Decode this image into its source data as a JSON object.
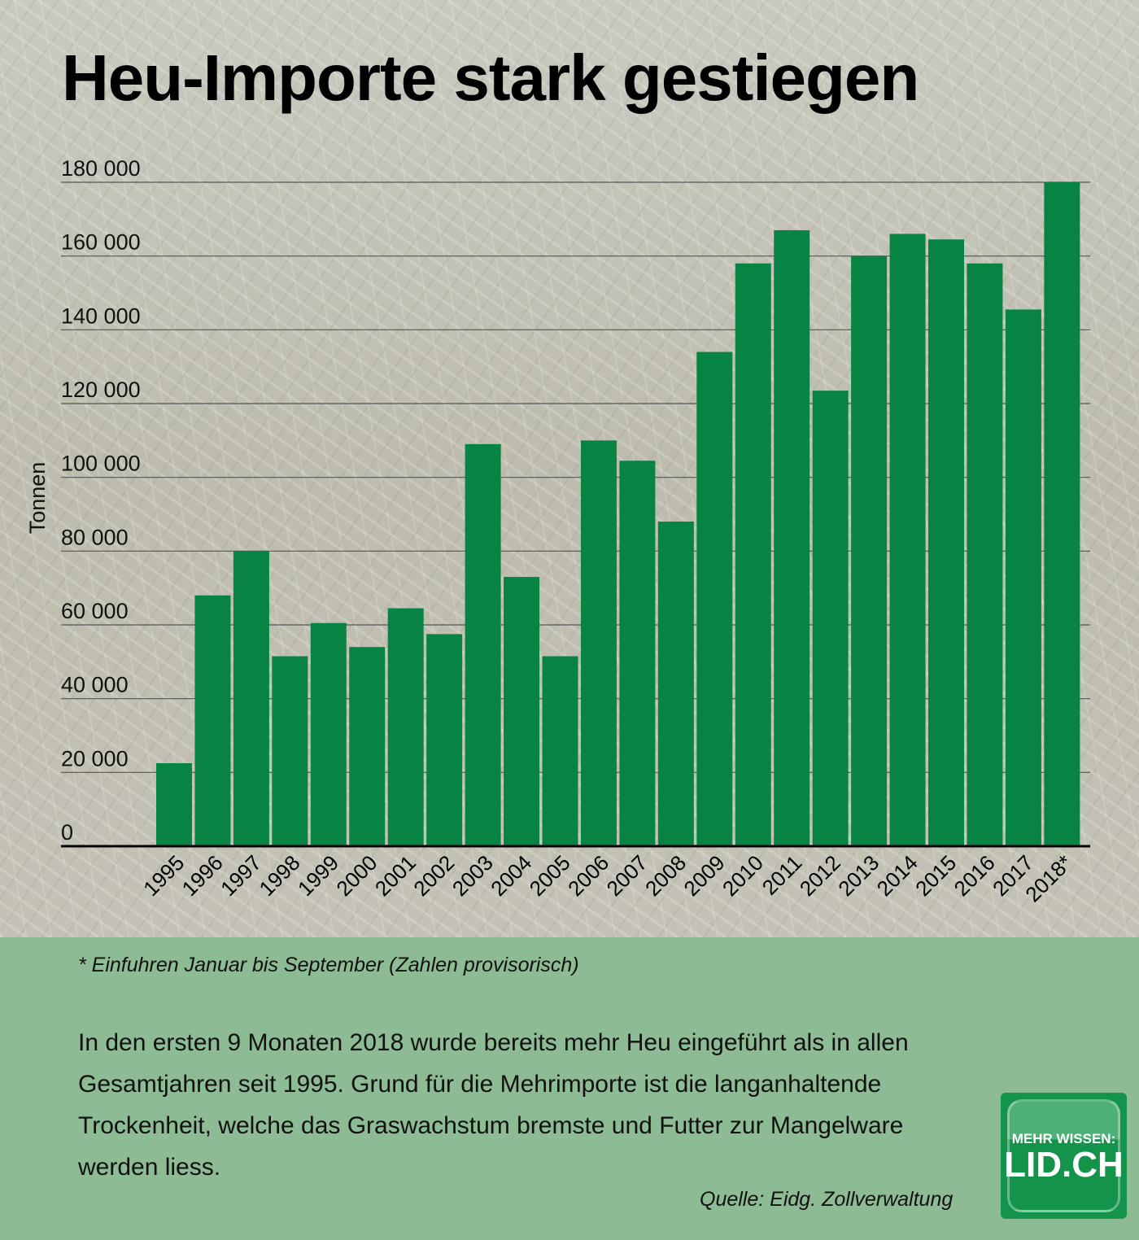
{
  "title": "Heu-Importe stark gestiegen",
  "chart_data": {
    "type": "bar",
    "title": "Heu-Importe stark gestiegen",
    "xlabel": "",
    "ylabel": "Tonnen",
    "ylim": [
      0,
      180000
    ],
    "yticks": [
      0,
      20000,
      40000,
      60000,
      80000,
      100000,
      120000,
      140000,
      160000,
      180000
    ],
    "ytick_labels": [
      "0",
      "20 000",
      "40 000",
      "60 000",
      "80 000",
      "100 000",
      "120 000",
      "140 000",
      "160 000",
      "180 000"
    ],
    "grid": true,
    "bar_color": "#078443",
    "categories": [
      "1995",
      "1996",
      "1997",
      "1998",
      "1999",
      "2000",
      "2001",
      "2002",
      "2003",
      "2004",
      "2005",
      "2006",
      "2007",
      "2008",
      "2009",
      "2010",
      "2011",
      "2012",
      "2013",
      "2014",
      "2015",
      "2016",
      "2017",
      "2018*"
    ],
    "values": [
      22500,
      68000,
      80000,
      51500,
      60500,
      54000,
      64500,
      57500,
      109000,
      73000,
      51500,
      110000,
      104500,
      88000,
      134000,
      158000,
      167000,
      123500,
      160000,
      166000,
      164500,
      158000,
      145500,
      180000
    ]
  },
  "footnote": "* Einfuhren Januar bis September (Zahlen provisorisch)",
  "description": "In den ersten 9 Monaten 2018 wurde bereits mehr Heu eingeführt als in allen Gesamtjahren seit 1995. Grund für die Mehrimporte ist die langanhaltende Trockenheit, welche das Graswachstum bremste und Futter zur Mangelware werden liess.",
  "source": "Quelle: Eidg. Zollverwaltung",
  "logo": {
    "line1": "MEHR WISSEN:",
    "line2": "LID.CH"
  }
}
